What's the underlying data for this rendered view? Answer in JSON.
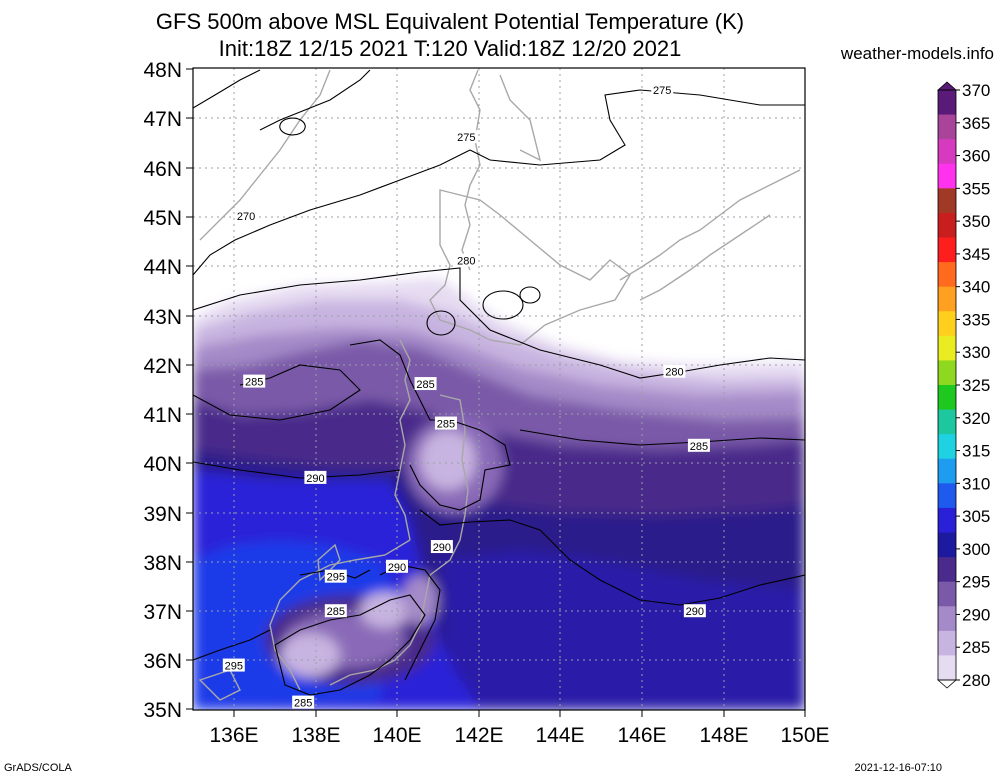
{
  "header": {
    "title_line1": "GFS 500m above MSL Equivalent Potential Temperature (K)",
    "title_line2": "Init:18Z 12/15 2021 T:120 Valid:18Z 12/20 2021",
    "site": "weather-models.info"
  },
  "footer": {
    "left": "GrADS/COLA",
    "right": "2021-12-16-07:10"
  },
  "map": {
    "lat_labels": [
      "48N",
      "47N",
      "46N",
      "45N",
      "44N",
      "43N",
      "42N",
      "41N",
      "40N",
      "39N",
      "38N",
      "37N",
      "36N",
      "35N"
    ],
    "lon_labels": [
      "136E",
      "138E",
      "140E",
      "142E",
      "144E",
      "146E",
      "148E",
      "150E"
    ],
    "lat_range": [
      35,
      48
    ],
    "lon_range": [
      135,
      150
    ],
    "contour_labels": [
      {
        "text": "275",
        "lon": 146.5,
        "lat": 47.55
      },
      {
        "text": "275",
        "lon": 141.7,
        "lat": 46.6
      },
      {
        "text": "270",
        "lon": 136.3,
        "lat": 45.0
      },
      {
        "text": "280",
        "lon": 141.7,
        "lat": 44.1
      },
      {
        "text": "280",
        "lon": 146.8,
        "lat": 41.85
      },
      {
        "text": "285",
        "lon": 136.5,
        "lat": 41.65
      },
      {
        "text": "285",
        "lon": 140.7,
        "lat": 41.6
      },
      {
        "text": "285",
        "lon": 141.2,
        "lat": 40.8
      },
      {
        "text": "285",
        "lon": 147.4,
        "lat": 40.35
      },
      {
        "text": "290",
        "lon": 138.0,
        "lat": 39.7
      },
      {
        "text": "290",
        "lon": 141.1,
        "lat": 38.3
      },
      {
        "text": "290",
        "lon": 140.0,
        "lat": 37.9
      },
      {
        "text": "295",
        "lon": 138.5,
        "lat": 37.7
      },
      {
        "text": "285",
        "lon": 138.5,
        "lat": 37.0
      },
      {
        "text": "290",
        "lon": 147.3,
        "lat": 37.0
      },
      {
        "text": "295",
        "lon": 136.0,
        "lat": 35.9
      },
      {
        "text": "285",
        "lon": 137.7,
        "lat": 35.15
      }
    ]
  },
  "colorbar": {
    "labels": [
      "370",
      "365",
      "360",
      "355",
      "350",
      "345",
      "340",
      "335",
      "330",
      "325",
      "320",
      "315",
      "310",
      "305",
      "300",
      "295",
      "290",
      "285",
      "280"
    ],
    "colors": [
      "#5a1a78",
      "#a8459a",
      "#d63bbf",
      "#ff33ee",
      "#a03a26",
      "#c81e1e",
      "#ff1e1e",
      "#ff6a1e",
      "#ffa020",
      "#ffcf1e",
      "#e8ec20",
      "#8ed820",
      "#1ec81e",
      "#1ec89e",
      "#1ed2e2",
      "#1e9cf0",
      "#1e5aee",
      "#2a20d8",
      "#1e1aa0",
      "#4a2a8a",
      "#7a5aa8",
      "#a48ac8",
      "#c8b4e0",
      "#e6dcf2"
    ],
    "unit_note": "(K)"
  }
}
